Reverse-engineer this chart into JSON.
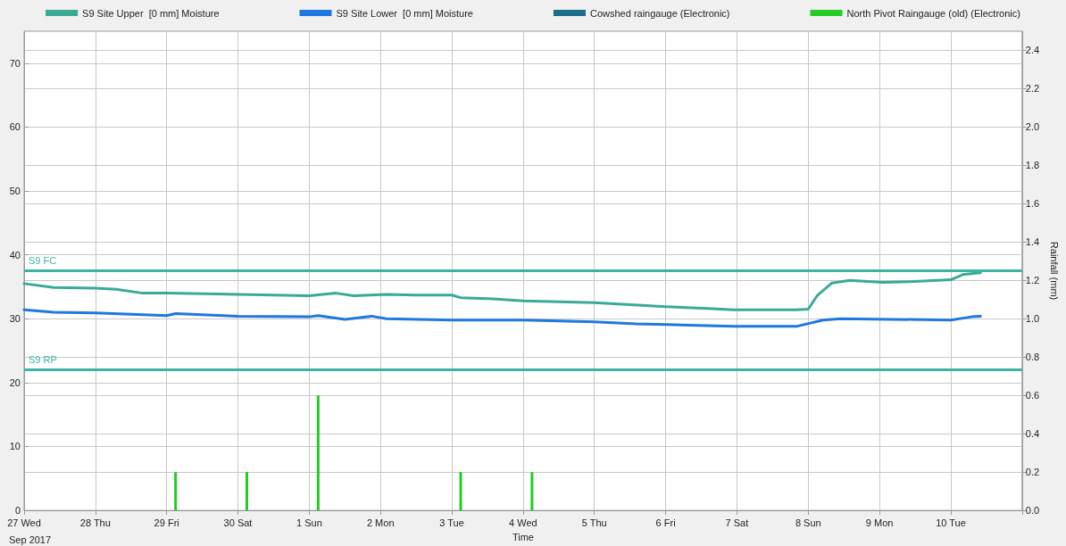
{
  "chart_data": {
    "type": "line",
    "xlabel": "Time",
    "y2label": "Rainfall (mm)",
    "annotations": [
      "Sep 2017"
    ],
    "xlim": [
      "2017-09-27",
      "2017-10-11"
    ],
    "xticks": [
      {
        "value": "2017-09-27",
        "label": "27 Wed"
      },
      {
        "value": "2017-09-28",
        "label": "28 Thu"
      },
      {
        "value": "2017-09-29",
        "label": "29 Fri"
      },
      {
        "value": "2017-09-30",
        "label": "30 Sat"
      },
      {
        "value": "2017-10-01",
        "label": "1 Sun"
      },
      {
        "value": "2017-10-02",
        "label": "2 Mon"
      },
      {
        "value": "2017-10-03",
        "label": "3 Tue"
      },
      {
        "value": "2017-10-04",
        "label": "4 Wed"
      },
      {
        "value": "2017-10-05",
        "label": "5 Thu"
      },
      {
        "value": "2017-10-06",
        "label": "6 Fri"
      },
      {
        "value": "2017-10-07",
        "label": "7 Sat"
      },
      {
        "value": "2017-10-08",
        "label": "8 Sun"
      },
      {
        "value": "2017-10-09",
        "label": "9 Mon"
      },
      {
        "value": "2017-10-10",
        "label": "10 Tue"
      },
      {
        "value": "2017-10-11",
        "label": null
      }
    ],
    "ylim": [
      0,
      75
    ],
    "yticks": [
      0,
      10,
      20,
      30,
      40,
      50,
      60,
      70
    ],
    "y2lim": [
      0,
      2.5
    ],
    "y2ticks": [
      {
        "value": 0,
        "label": "0.0"
      },
      {
        "value": 0.2,
        "label": "0.2"
      },
      {
        "value": 0.4,
        "label": "0.4"
      },
      {
        "value": 0.6,
        "label": "0.6"
      },
      {
        "value": 0.8,
        "label": "0.8"
      },
      {
        "value": 1,
        "label": "1.0"
      },
      {
        "value": 1.2,
        "label": "1.2"
      },
      {
        "value": 1.4,
        "label": "1.4"
      },
      {
        "value": 1.6,
        "label": "1.6"
      },
      {
        "value": 1.8,
        "label": "1.8"
      },
      {
        "value": 2,
        "label": "2.0"
      },
      {
        "value": 2.2,
        "label": "2.2"
      },
      {
        "value": 2.4,
        "label": "2.4"
      }
    ],
    "grid": true,
    "legend": "top",
    "marker": "none",
    "line_style": "solid",
    "ref_lines": [
      {
        "axis": "y",
        "value": 37.6,
        "label": "S9 FC",
        "color": "#3cb4a0"
      },
      {
        "axis": "y",
        "value": 22.1,
        "label": "S9 RP",
        "color": "#3cb4a0"
      }
    ],
    "series": [
      {
        "name": "S9 Site Upper  [0 mm] Moisture",
        "color": "#3aaa96",
        "x": [
          "2017-09-27T00:00",
          "2017-09-27T10:00",
          "2017-09-28T00:00",
          "2017-09-28T07:00",
          "2017-09-28T16:00",
          "2017-09-29T00:00",
          "2017-09-30T00:00",
          "2017-10-01T00:00",
          "2017-10-01T09:00",
          "2017-10-01T15:00",
          "2017-10-02T02:00",
          "2017-10-02T12:00",
          "2017-10-03T00:00",
          "2017-10-03T03:00",
          "2017-10-03T14:00",
          "2017-10-04T00:00",
          "2017-10-05T00:00",
          "2017-10-05T08:00",
          "2017-10-06T00:00",
          "2017-10-06T14:00",
          "2017-10-06T23:00",
          "2017-10-07T20:00",
          "2017-10-08T00:00",
          "2017-10-08T03:00",
          "2017-10-08T08:00",
          "2017-10-08T14:00",
          "2017-10-09T01:00",
          "2017-10-09T10:00",
          "2017-10-10T00:00",
          "2017-10-10T04:00",
          "2017-10-10T10:00"
        ],
        "values": [
          35.5,
          34.9,
          34.8,
          34.6,
          34.0,
          34.0,
          33.8,
          33.6,
          34.0,
          33.6,
          33.8,
          33.7,
          33.7,
          33.3,
          33.1,
          32.8,
          32.5,
          32.3,
          31.9,
          31.6,
          31.4,
          31.4,
          31.5,
          33.6,
          35.6,
          36.0,
          35.7,
          35.8,
          36.1,
          36.9,
          37.2
        ]
      },
      {
        "name": "S9 Site Lower  [0 mm] Moisture",
        "color": "#1f78e0",
        "x": [
          "2017-09-27T00:00",
          "2017-09-27T10:00",
          "2017-09-28T00:00",
          "2017-09-28T12:00",
          "2017-09-29T00:00",
          "2017-09-29T03:00",
          "2017-09-30T00:00",
          "2017-10-01T00:00",
          "2017-10-01T03:00",
          "2017-10-01T12:00",
          "2017-10-01T21:00",
          "2017-10-02T02:00",
          "2017-10-03T00:00",
          "2017-10-04T00:00",
          "2017-10-05T00:00",
          "2017-10-05T14:00",
          "2017-10-06T00:00",
          "2017-10-06T23:00",
          "2017-10-07T20:00",
          "2017-10-08T05:00",
          "2017-10-08T11:00",
          "2017-10-10T00:00",
          "2017-10-10T07:00",
          "2017-10-10T10:00"
        ],
        "values": [
          31.4,
          31.0,
          30.9,
          30.7,
          30.5,
          30.8,
          30.4,
          30.3,
          30.5,
          29.9,
          30.4,
          30.0,
          29.8,
          29.8,
          29.5,
          29.2,
          29.1,
          28.8,
          28.8,
          29.8,
          30.0,
          29.8,
          30.3,
          30.4
        ]
      },
      {
        "name": "Cowshed raingauge (Electronic)",
        "color": "#1a6e8a",
        "type": "bar",
        "axis": "y2"
      },
      {
        "name": "North Pivot Raingauge (old) (Electronic)",
        "color": "#22cc22",
        "type": "bar",
        "axis": "y2",
        "x": [
          "2017-09-29T03:00",
          "2017-09-30T03:00",
          "2017-10-01T03:00",
          "2017-10-03T03:00",
          "2017-10-04T03:00"
        ],
        "values": [
          0.2,
          0.2,
          0.6,
          0.2,
          0.2
        ]
      }
    ]
  }
}
